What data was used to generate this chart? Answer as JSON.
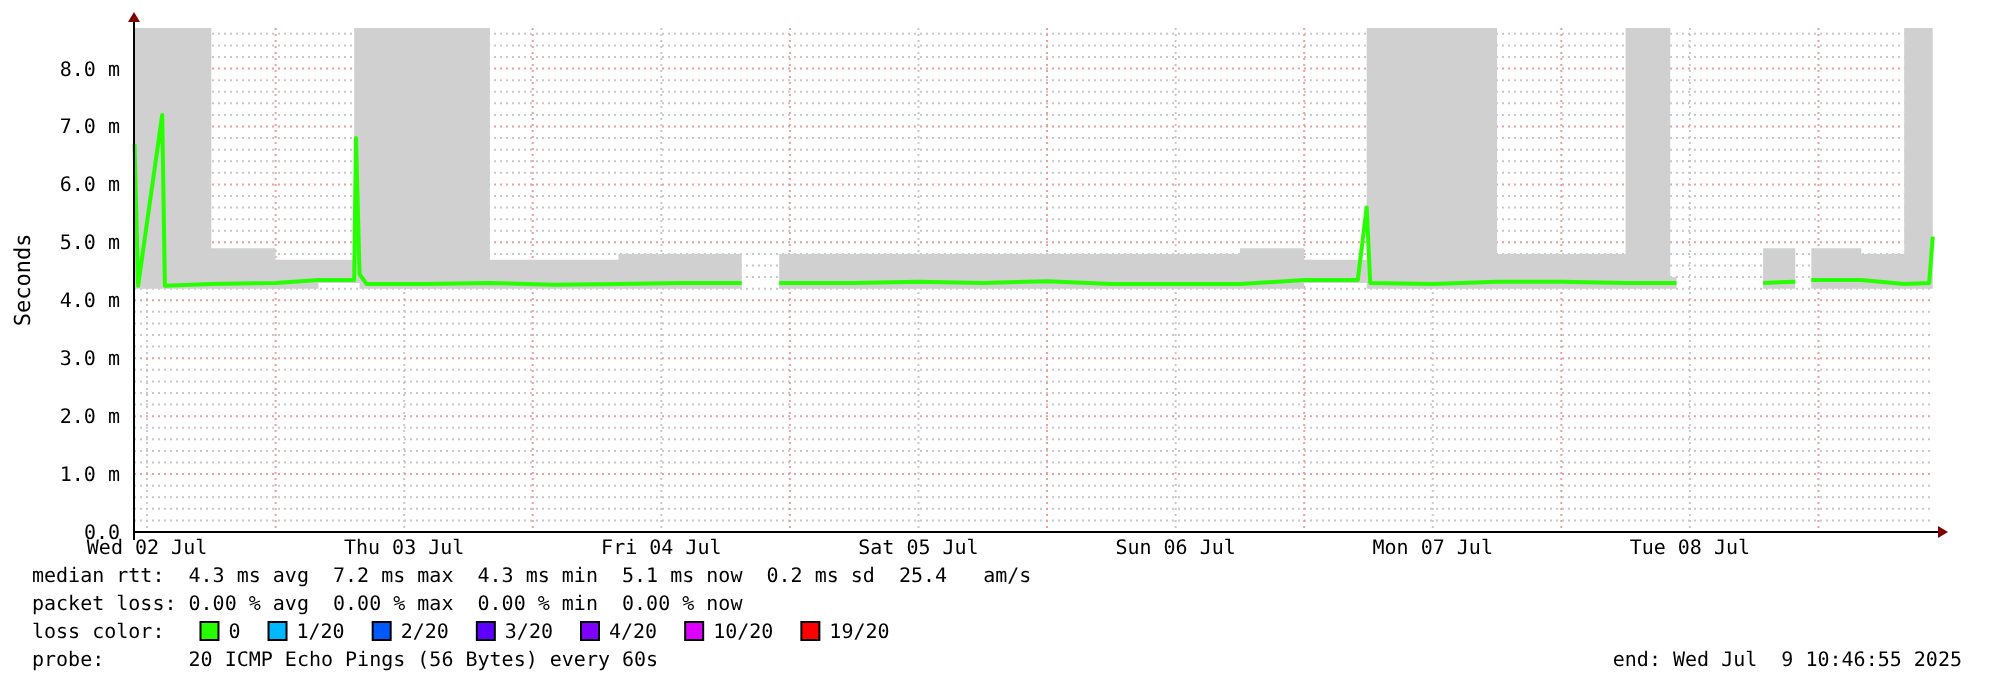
{
  "chart_data": {
    "type": "line",
    "ylabel": "Seconds",
    "legend_title": "loss color:",
    "legend": "bottom",
    "grid": true,
    "marker": "none",
    "line_style": "solid",
    "xlim": [
      "2025-07-02T10:47",
      "2025-07-09T10:47"
    ],
    "xticks": [
      {
        "value": "2025-07-02T12:00",
        "label": "Wed 02 Jul"
      },
      {
        "value": "2025-07-03T00:00",
        "label": null
      },
      {
        "value": "2025-07-03T12:00",
        "label": "Thu 03 Jul"
      },
      {
        "value": "2025-07-04T00:00",
        "label": null
      },
      {
        "value": "2025-07-04T12:00",
        "label": "Fri 04 Jul"
      },
      {
        "value": "2025-07-05T00:00",
        "label": null
      },
      {
        "value": "2025-07-05T12:00",
        "label": "Sat 05 Jul"
      },
      {
        "value": "2025-07-06T00:00",
        "label": null
      },
      {
        "value": "2025-07-06T12:00",
        "label": "Sun 06 Jul"
      },
      {
        "value": "2025-07-07T00:00",
        "label": null
      },
      {
        "value": "2025-07-07T12:00",
        "label": "Mon 07 Jul"
      },
      {
        "value": "2025-07-08T00:00",
        "label": null
      },
      {
        "value": "2025-07-08T12:00",
        "label": "Tue 08 Jul"
      },
      {
        "value": "2025-07-09T00:00",
        "label": null
      }
    ],
    "ylim": [
      0,
      8.7
    ],
    "yticks": [
      {
        "value": 0,
        "label": "0.0"
      },
      {
        "value": 1,
        "label": "1.0 m"
      },
      {
        "value": 2,
        "label": "2.0 m"
      },
      {
        "value": 3,
        "label": "3.0 m"
      },
      {
        "value": 4,
        "label": "4.0 m"
      },
      {
        "value": 5,
        "label": "5.0 m"
      },
      {
        "value": 6,
        "label": "6.0 m"
      },
      {
        "value": 7,
        "label": "7.0 m"
      },
      {
        "value": 8,
        "label": "8.0 m"
      }
    ],
    "x": [
      "2025-07-02T10:50",
      "2025-07-02T11:10",
      "2025-07-02T13:25",
      "2025-07-02T13:40",
      "2025-07-02T18:00",
      "2025-07-03T00:00",
      "2025-07-03T04:00",
      "2025-07-03T07:20",
      "2025-07-03T07:30",
      "2025-07-03T07:50",
      "2025-07-03T08:30",
      "2025-07-03T14:00",
      "2025-07-03T20:00",
      "2025-07-04T02:00",
      "2025-07-04T08:00",
      "2025-07-04T14:00",
      "2025-07-04T19:30",
      "2025-07-04T21:00",
      "2025-07-04T23:00",
      "2025-07-05T06:00",
      "2025-07-05T12:00",
      "2025-07-05T18:00",
      "2025-07-06T00:00",
      "2025-07-06T06:00",
      "2025-07-06T12:00",
      "2025-07-06T18:00",
      "2025-07-07T00:00",
      "2025-07-07T05:00",
      "2025-07-07T05:50",
      "2025-07-07T06:10",
      "2025-07-07T12:00",
      "2025-07-07T18:00",
      "2025-07-08T00:00",
      "2025-07-08T06:00",
      "2025-07-08T09:50",
      "2025-07-08T10:10",
      "2025-07-08T10:35",
      "2025-07-08T10:45",
      "2025-07-08T12:00",
      "2025-07-08T18:50",
      "2025-07-08T21:50",
      "2025-07-08T22:30",
      "2025-07-08T23:20",
      "2025-07-09T04:00",
      "2025-07-09T08:00",
      "2025-07-09T10:20",
      "2025-07-09T10:40"
    ],
    "series": [
      {
        "name": "0",
        "color": "#26ff00",
        "values": [
          6.7,
          4.25,
          7.2,
          4.25,
          4.28,
          4.3,
          4.35,
          4.35,
          6.8,
          4.45,
          4.28,
          4.28,
          4.3,
          4.27,
          4.28,
          4.3,
          4.3,
          null,
          4.3,
          4.3,
          4.32,
          4.3,
          4.33,
          4.28,
          4.28,
          4.28,
          4.35,
          4.35,
          5.6,
          4.3,
          4.28,
          4.32,
          4.32,
          4.3,
          4.3,
          4.3,
          4.3,
          4.3,
          null,
          4.3,
          4.32,
          null,
          4.35,
          4.35,
          4.28,
          4.3,
          5.1
        ],
        "lower": [
          4.2,
          4.2,
          4.2,
          4.2,
          4.2,
          4.2,
          4.3,
          4.3,
          4.3,
          4.2,
          4.2,
          4.2,
          4.2,
          4.2,
          4.2,
          4.2,
          4.2,
          null,
          4.2,
          4.2,
          4.2,
          4.2,
          4.2,
          4.2,
          4.2,
          4.2,
          4.3,
          4.3,
          4.2,
          4.2,
          4.2,
          4.2,
          4.2,
          4.2,
          4.2,
          4.2,
          4.2,
          4.2,
          null,
          4.2,
          4.2,
          null,
          4.2,
          4.2,
          4.2,
          4.2,
          4.2
        ],
        "upper": [
          8.7,
          8.7,
          8.7,
          8.7,
          4.9,
          4.7,
          4.7,
          8.7,
          8.7,
          8.7,
          8.7,
          8.7,
          4.7,
          4.7,
          4.8,
          4.8,
          4.8,
          null,
          4.8,
          4.8,
          4.8,
          4.8,
          4.8,
          4.8,
          4.8,
          4.9,
          4.7,
          4.7,
          8.7,
          8.7,
          8.7,
          4.8,
          4.8,
          8.7,
          8.7,
          4.4,
          4.4,
          4.4,
          null,
          4.9,
          4.9,
          null,
          4.9,
          4.8,
          8.7,
          8.7,
          8.7
        ]
      },
      {
        "name": "1/20",
        "color": "#00b8ff",
        "values": [
          null,
          null,
          null,
          null,
          null,
          null,
          null,
          null,
          null,
          null,
          null,
          null,
          null,
          null,
          null,
          null,
          null,
          null,
          null,
          null,
          null,
          null,
          null,
          null,
          null,
          null,
          null,
          null,
          null,
          null,
          null,
          null,
          null,
          null,
          null,
          null,
          null,
          null,
          null,
          null,
          null,
          null,
          null,
          null,
          null,
          null,
          null
        ]
      },
      {
        "name": "2/20",
        "color": "#0059ff",
        "values": [
          null,
          null,
          null,
          null,
          null,
          null,
          null,
          null,
          null,
          null,
          null,
          null,
          null,
          null,
          null,
          null,
          null,
          null,
          null,
          null,
          null,
          null,
          null,
          null,
          null,
          null,
          null,
          null,
          null,
          null,
          null,
          null,
          null,
          null,
          null,
          null,
          null,
          null,
          null,
          null,
          null,
          null,
          null,
          null,
          null,
          null,
          null
        ]
      },
      {
        "name": "3/20",
        "color": "#5e00ff",
        "values": [
          null,
          null,
          null,
          null,
          null,
          null,
          null,
          null,
          null,
          null,
          null,
          null,
          null,
          null,
          null,
          null,
          null,
          null,
          null,
          null,
          null,
          null,
          null,
          null,
          null,
          null,
          null,
          null,
          null,
          null,
          null,
          null,
          null,
          null,
          null,
          null,
          null,
          null,
          null,
          null,
          null,
          null,
          null,
          null,
          null,
          null,
          null
        ]
      },
      {
        "name": "4/20",
        "color": "#7e00ff",
        "values": [
          null,
          null,
          null,
          null,
          null,
          null,
          null,
          null,
          null,
          null,
          null,
          null,
          null,
          null,
          null,
          null,
          null,
          null,
          null,
          null,
          null,
          null,
          null,
          null,
          null,
          null,
          null,
          null,
          null,
          null,
          null,
          null,
          null,
          null,
          null,
          null,
          null,
          null,
          null,
          null,
          null,
          null,
          null,
          null,
          null,
          null,
          null
        ]
      },
      {
        "name": "10/20",
        "color": "#dd00ff",
        "values": [
          null,
          null,
          null,
          null,
          null,
          null,
          null,
          null,
          null,
          null,
          null,
          null,
          null,
          null,
          null,
          null,
          null,
          null,
          null,
          null,
          null,
          null,
          null,
          null,
          null,
          null,
          null,
          null,
          null,
          null,
          null,
          null,
          null,
          null,
          null,
          null,
          null,
          null,
          null,
          null,
          null,
          null,
          null,
          null,
          null,
          null,
          null
        ]
      },
      {
        "name": "19/20",
        "color": "#ff0000",
        "values": [
          null,
          null,
          null,
          null,
          null,
          null,
          null,
          null,
          null,
          null,
          null,
          null,
          null,
          null,
          null,
          null,
          null,
          null,
          null,
          null,
          null,
          null,
          null,
          null,
          null,
          null,
          null,
          null,
          null,
          null,
          null,
          null,
          null,
          null,
          null,
          null,
          null,
          null,
          null,
          null,
          null,
          null,
          null,
          null,
          null,
          null,
          null
        ]
      }
    ],
    "annotations": [
      "median rtt:  4.3 ms avg  7.2 ms max  4.3 ms min  5.1 ms now  0.2 ms sd  25.4   am/s",
      "packet loss: 0.00 % avg  0.00 % max  0.00 % min  0.00 % now",
      "probe:       20 ICMP Echo Pings (56 Bytes) every 60s",
      "end: Wed Jul  9 10:46:55 2025"
    ]
  }
}
